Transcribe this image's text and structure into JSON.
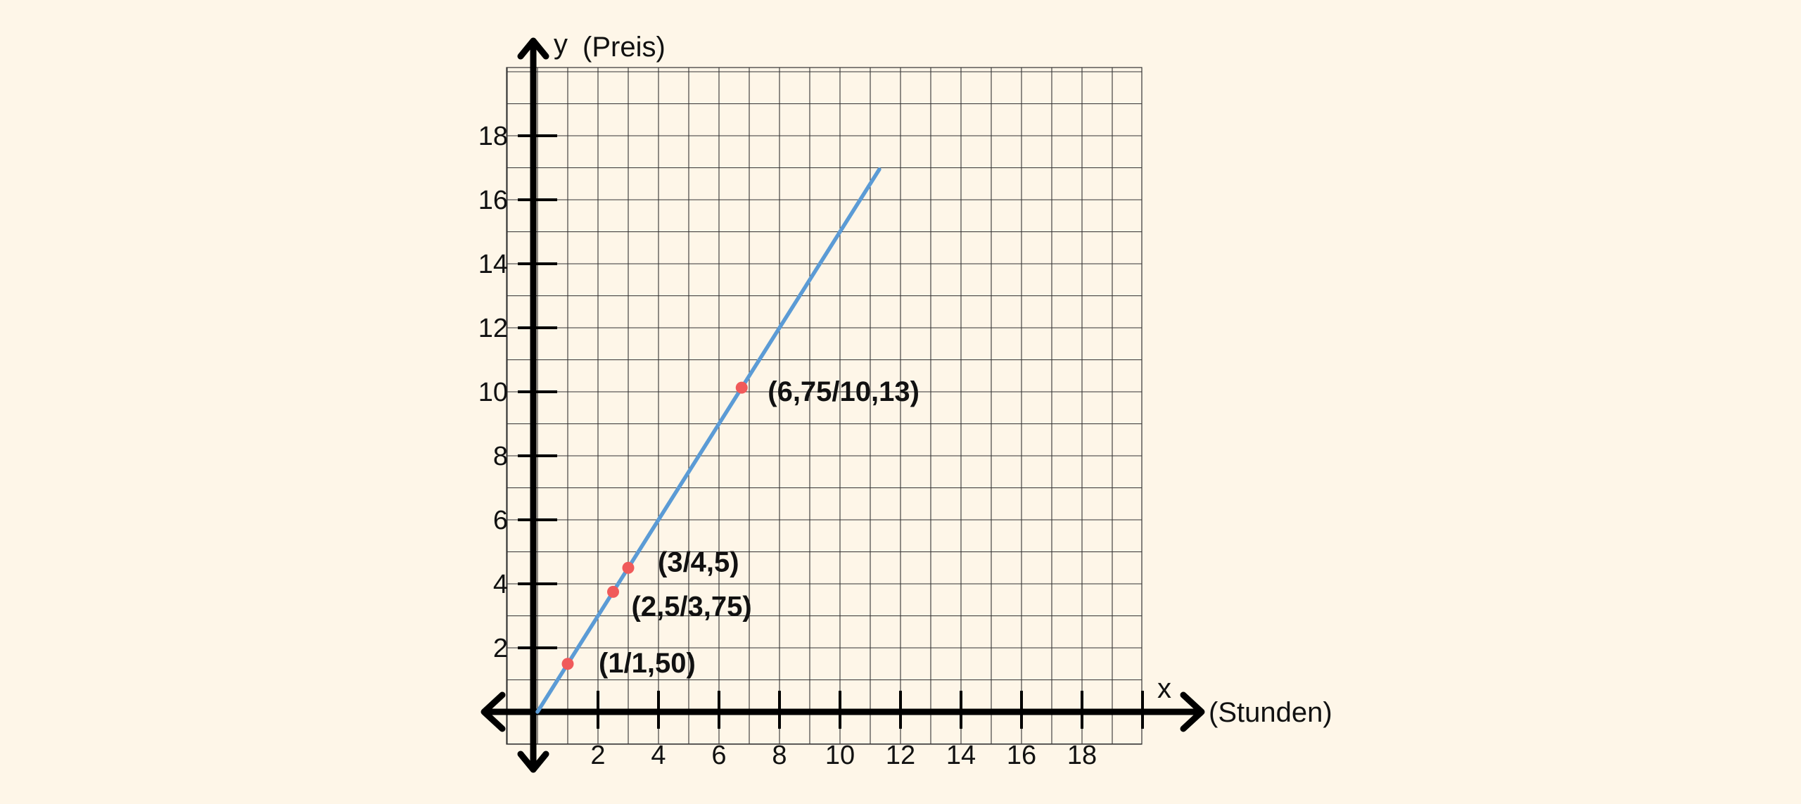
{
  "chart_data": {
    "type": "line",
    "title": "",
    "xlabel": "(Stunden)",
    "ylabel": "(Preis)",
    "x_axis_letter": "x",
    "y_axis_letter": "y",
    "xlim": [
      0,
      20
    ],
    "ylim": [
      0,
      20
    ],
    "x_ticks": [
      "2",
      "4",
      "6",
      "8",
      "10",
      "12",
      "14",
      "16",
      "18"
    ],
    "y_ticks": [
      "2",
      "4",
      "6",
      "8",
      "10",
      "12",
      "14",
      "16",
      "18"
    ],
    "grid": true,
    "line": {
      "slope": 1.5,
      "intercept": 0,
      "x_start": 0,
      "x_end": 11.3,
      "color": "#5b9bd5"
    },
    "points": [
      {
        "x": 1,
        "y": 1.5,
        "label": "(1/1,50)"
      },
      {
        "x": 2.5,
        "y": 3.75,
        "label": "(2,5/3,75)"
      },
      {
        "x": 3,
        "y": 4.5,
        "label": "(3/4,5)"
      },
      {
        "x": 6.75,
        "y": 10.13,
        "label": "(6,75/10,13)"
      }
    ],
    "point_color": "#f05a5a",
    "axis_color": "#000000",
    "grid_color": "#333333",
    "background": "#fef6e8"
  }
}
